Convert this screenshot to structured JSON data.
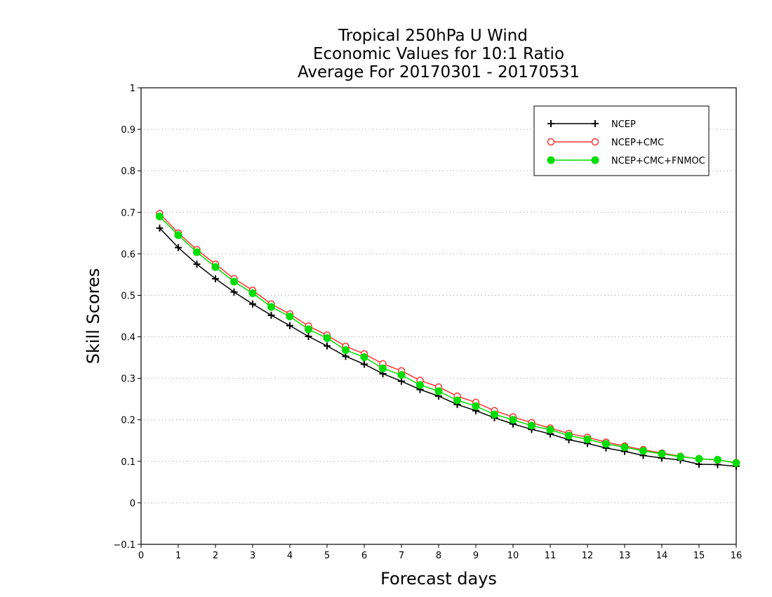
{
  "chart_data": {
    "type": "line",
    "title_lines": [
      "Tropical 250hPa U Wind",
      "Economic Values for 10:1 Ratio",
      "Average For 20170301 - 20170531"
    ],
    "xlabel": "Forecast days",
    "ylabel": "Skill Scores",
    "xlim": [
      0,
      16
    ],
    "ylim": [
      -0.1,
      1
    ],
    "xticks": [
      "0",
      "1",
      "2",
      "3",
      "4",
      "5",
      "6",
      "7",
      "8",
      "9",
      "10",
      "11",
      "12",
      "13",
      "14",
      "15",
      "16"
    ],
    "yticks": [
      "−0.1",
      "0",
      "0.1",
      "0.2",
      "0.3",
      "0.4",
      "0.5",
      "0.6",
      "0.7",
      "0.8",
      "0.9",
      "1"
    ],
    "grid": "horizontal dotted",
    "legend_position": "top-right",
    "x": [
      0.5,
      1,
      1.5,
      2,
      2.5,
      3,
      3.5,
      4,
      4.5,
      5,
      5.5,
      6,
      6.5,
      7,
      7.5,
      8,
      8.5,
      9,
      9.5,
      10,
      10.5,
      11,
      11.5,
      12,
      12.5,
      13,
      13.5,
      14,
      14.5,
      15,
      15.5,
      16
    ],
    "series": [
      {
        "name": "NCEP",
        "color": "#000000",
        "marker": "plus",
        "values": [
          0.662,
          0.615,
          0.575,
          0.54,
          0.508,
          0.479,
          0.452,
          0.427,
          0.401,
          0.378,
          0.353,
          0.334,
          0.311,
          0.293,
          0.273,
          0.257,
          0.237,
          0.222,
          0.205,
          0.19,
          0.177,
          0.166,
          0.152,
          0.143,
          0.132,
          0.124,
          0.114,
          0.108,
          0.103,
          0.093,
          0.092,
          0.088
        ]
      },
      {
        "name": "NCEP+CMC",
        "color": "#ff3333",
        "marker": "open-circle",
        "values": [
          0.697,
          0.65,
          0.61,
          0.575,
          0.54,
          0.512,
          0.479,
          0.455,
          0.426,
          0.404,
          0.377,
          0.359,
          0.335,
          0.318,
          0.295,
          0.279,
          0.257,
          0.242,
          0.222,
          0.207,
          0.193,
          0.18,
          0.167,
          0.158,
          0.146,
          0.137,
          0.128,
          0.12,
          0.112,
          0.106,
          0.103,
          0.097
        ]
      },
      {
        "name": "NCEP+CMC+FNMOC",
        "color": "#00dd00",
        "marker": "filled-circle",
        "values": [
          0.69,
          0.645,
          0.604,
          0.568,
          0.533,
          0.505,
          0.472,
          0.449,
          0.418,
          0.397,
          0.368,
          0.351,
          0.324,
          0.308,
          0.284,
          0.269,
          0.247,
          0.233,
          0.213,
          0.2,
          0.186,
          0.176,
          0.162,
          0.153,
          0.142,
          0.134,
          0.125,
          0.118,
          0.111,
          0.106,
          0.104,
          0.096
        ]
      }
    ]
  }
}
